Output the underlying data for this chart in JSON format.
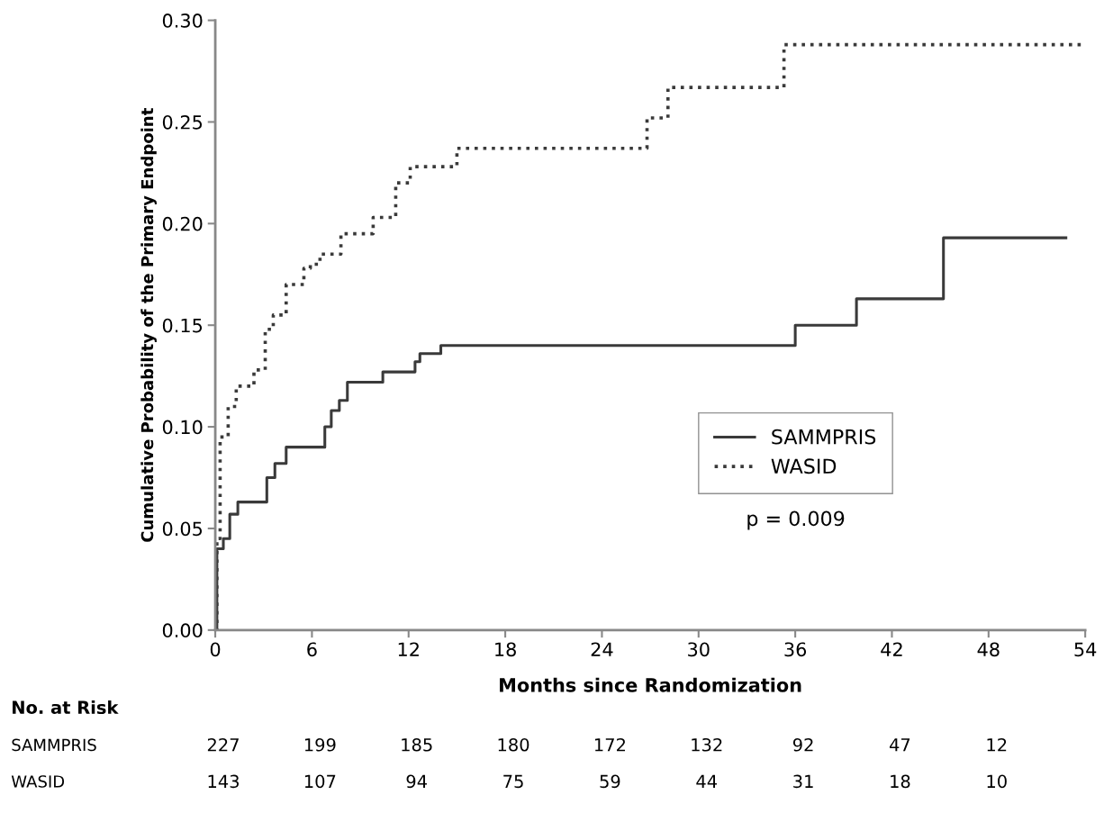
{
  "chart_data": {
    "type": "step",
    "xlabel": "Months since Randomization",
    "ylabel": "Cumulative Probability of the Primary Endpoint",
    "xlim": [
      0,
      54
    ],
    "xticks": [
      0,
      6,
      12,
      18,
      24,
      30,
      36,
      42,
      48,
      54
    ],
    "ylim": [
      0,
      0.3
    ],
    "yticks": [
      {
        "value": 0,
        "label": "0.00"
      },
      {
        "value": 0.05,
        "label": "0.05"
      },
      {
        "value": 0.1,
        "label": "0.10"
      },
      {
        "value": 0.15,
        "label": "0.15"
      },
      {
        "value": 0.2,
        "label": "0.20"
      },
      {
        "value": 0.25,
        "label": "0.25"
      },
      {
        "value": 0.3,
        "label": "0.30"
      }
    ],
    "legend": "center right",
    "grid": false,
    "series": [
      {
        "name": "SAMMPRIS",
        "color": "#3a3a3a",
        "line_style": "solid",
        "x": [
          0,
          0.1,
          0.5,
          0.9,
          1.4,
          3.2,
          3.7,
          4.4,
          6.3,
          6.8,
          7.2,
          7.7,
          8.2,
          10.4,
          12.4,
          12.7,
          14.0,
          36.0,
          39.8,
          45.2,
          52.8
        ],
        "values": [
          0,
          0.04,
          0.045,
          0.057,
          0.063,
          0.075,
          0.082,
          0.09,
          0.09,
          0.1,
          0.108,
          0.113,
          0.122,
          0.127,
          0.132,
          0.136,
          0.14,
          0.15,
          0.163,
          0.193,
          0.193
        ]
      },
      {
        "name": "WASID",
        "color": "#3a3a3a",
        "line_style": "dotted",
        "x": [
          0,
          0.1,
          0.3,
          0.8,
          1.3,
          2.4,
          3.1,
          3.6,
          4.4,
          5.5,
          5.9,
          6.5,
          7.8,
          9.8,
          11.2,
          12.1,
          15.0,
          26.8,
          28.1,
          35.3,
          54.0
        ],
        "values": [
          0,
          0.045,
          0.095,
          0.11,
          0.12,
          0.128,
          0.148,
          0.155,
          0.17,
          0.178,
          0.18,
          0.185,
          0.195,
          0.203,
          0.22,
          0.228,
          0.237,
          0.252,
          0.267,
          0.288,
          0.288
        ]
      }
    ],
    "annotations": [
      "p = 0.009",
      "No. at Risk",
      "SAMMPRIS",
      "227",
      "199",
      "185",
      "180",
      "172",
      "132",
      "92",
      "47",
      "12",
      "WASID",
      "143",
      "107",
      "94",
      "75",
      "59",
      "44",
      "31",
      "18",
      "10"
    ]
  }
}
